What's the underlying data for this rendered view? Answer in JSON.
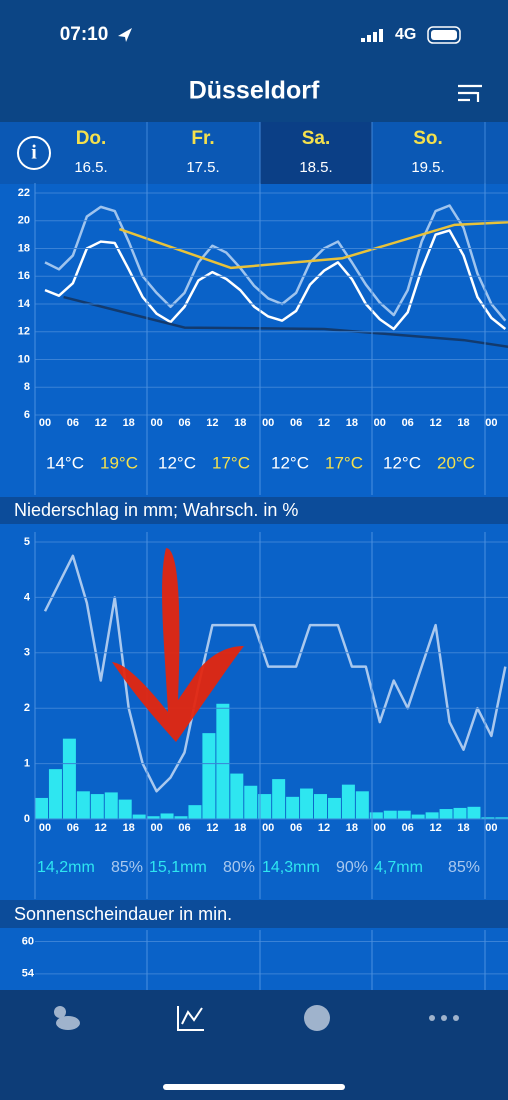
{
  "status": {
    "time": "07:10",
    "network": "4G"
  },
  "header": {
    "title": "Düsseldorf"
  },
  "days": [
    {
      "name": "Do.",
      "date": "16.5."
    },
    {
      "name": "Fr.",
      "date": "17.5."
    },
    {
      "name": "Sa.",
      "date": "18.5."
    },
    {
      "name": "So.",
      "date": "19.5."
    }
  ],
  "hour_labels": [
    "00",
    "06",
    "12",
    "18"
  ],
  "temperature_chart": {
    "ylim": [
      6,
      22
    ],
    "yticks": [
      6,
      8,
      10,
      12,
      14,
      16,
      18,
      20,
      22
    ],
    "lines": [
      {
        "color": "#9fc4ee",
        "x": [
          0,
          3,
          6,
          9,
          12,
          15,
          18,
          21,
          24,
          27,
          30,
          33,
          36,
          39,
          42,
          45,
          48,
          51,
          54,
          57,
          60,
          63,
          66,
          69,
          72,
          75,
          78,
          81,
          84,
          87,
          90,
          93,
          96,
          99
        ],
        "values": [
          17,
          16.5,
          17.5,
          20.3,
          21,
          20.7,
          18.5,
          16,
          14.8,
          13.8,
          14.8,
          17,
          18.2,
          17.7,
          16.6,
          15.3,
          14.4,
          14,
          14.8,
          17,
          18,
          18.5,
          17,
          15.4,
          14.1,
          13.2,
          15,
          18.5,
          20.7,
          21.1,
          19.5,
          16.2,
          14,
          12.8
        ]
      },
      {
        "color": "#ffffff",
        "x": [
          0,
          3,
          6,
          9,
          12,
          15,
          18,
          21,
          24,
          27,
          30,
          33,
          36,
          39,
          42,
          45,
          48,
          51,
          54,
          57,
          60,
          63,
          66,
          69,
          72,
          75,
          78,
          81,
          84,
          87,
          90,
          93,
          96,
          99
        ],
        "values": [
          15,
          14.6,
          15.5,
          18,
          18.5,
          18.4,
          16.5,
          14.5,
          13.3,
          12.7,
          13.8,
          15.7,
          16.3,
          15.8,
          15,
          13.8,
          13.1,
          12.8,
          13.5,
          15.4,
          16.4,
          17,
          15.8,
          14,
          12.9,
          12.2,
          13.4,
          16.5,
          19,
          19.3,
          17.5,
          14.5,
          13,
          12.2
        ]
      },
      {
        "color": "#e8c23a",
        "x": [
          16,
          40,
          64,
          88,
          100
        ],
        "values": [
          19.4,
          16.6,
          17.3,
          19.7,
          19.9
        ]
      },
      {
        "color": "#123a6e",
        "x": [
          4,
          30,
          60,
          90,
          100
        ],
        "values": [
          14.5,
          12.3,
          12.2,
          11.4,
          10.9
        ]
      }
    ]
  },
  "daily_temps": [
    {
      "min": "14°C",
      "max": "19°C"
    },
    {
      "min": "12°C",
      "max": "17°C"
    },
    {
      "min": "12°C",
      "max": "17°C"
    },
    {
      "min": "12°C",
      "max": "20°C"
    }
  ],
  "precipitation_chart": {
    "title": "Niederschlag in mm; Wahrsch. in %",
    "ylim": [
      0,
      5
    ],
    "yticks": [
      0,
      1,
      2,
      3,
      4,
      5
    ],
    "bars": {
      "color": "#2ee6f0",
      "values": [
        0.38,
        0.9,
        1.45,
        0.5,
        0.45,
        0.48,
        0.35,
        0.08,
        0.05,
        0.1,
        0.05,
        0.25,
        1.55,
        2.08,
        0.82,
        0.6,
        0.45,
        0.72,
        0.4,
        0.55,
        0.45,
        0.38,
        0.62,
        0.5,
        0.12,
        0.15,
        0.15,
        0.08,
        0.12,
        0.18,
        0.2,
        0.22,
        0.03,
        0.03
      ]
    },
    "probability": {
      "color": "#a9c8ee",
      "x": [
        0,
        6,
        9,
        12,
        15,
        18,
        21,
        24,
        27,
        30,
        33,
        36,
        39,
        42,
        45,
        48,
        51,
        54,
        57,
        60,
        63,
        66,
        69,
        72,
        75,
        78,
        81,
        84,
        87,
        90,
        93,
        96,
        99
      ],
      "values": [
        3.75,
        4.75,
        3.9,
        2.5,
        4,
        2,
        1,
        0.5,
        0.75,
        1.2,
        2.4,
        3.5,
        3.5,
        3.5,
        3.5,
        2.75,
        2.75,
        2.75,
        3.5,
        3.5,
        3.5,
        2.75,
        2.75,
        1.75,
        2.5,
        2,
        2.75,
        3.5,
        1.75,
        1.25,
        2,
        1.5,
        2.75
      ]
    },
    "totals": [
      {
        "amount": "14,2mm",
        "probability": "85%"
      },
      {
        "amount": "15,1mm",
        "probability": "80%"
      },
      {
        "amount": "14,3mm",
        "probability": "90%"
      },
      {
        "amount": "4,7mm",
        "probability": "85%"
      }
    ]
  },
  "sunshine_chart": {
    "title": "Sonnenscheindauer in min.",
    "ylim": [
      51,
      62.5
    ],
    "yticks": [
      60,
      54
    ]
  },
  "tabs": [
    "Wetter",
    "Graphs",
    "Karten",
    "Mehr"
  ]
}
